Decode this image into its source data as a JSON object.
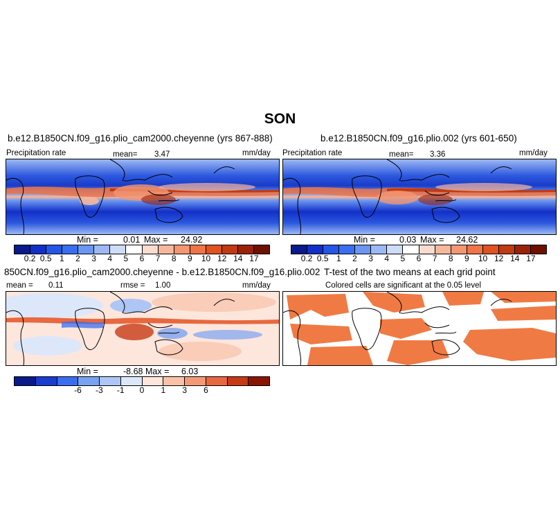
{
  "season": "SON",
  "panels": {
    "top_left": {
      "title": "b.e12.B1850CN.f09_g16.plio_cam2000.cheyenne (yrs 867-888)",
      "left_label": "Precipitation rate",
      "mean_label": "mean=",
      "mean_value": "3.47",
      "units": "mm/day",
      "min_label": "Min =",
      "min_value": "0.01",
      "max_label": "Max =",
      "max_value": "24.92"
    },
    "top_right": {
      "title": "b.e12.B1850CN.f09_g16.plio.002 (yrs 601-650)",
      "left_label": "Precipitation rate",
      "mean_label": "mean=",
      "mean_value": "3.36",
      "units": "mm/day",
      "min_label": "Min =",
      "min_value": "0.03",
      "max_label": "Max =",
      "max_value": "24.62"
    },
    "bottom_left": {
      "title": "850CN.f09_g16.plio_cam2000.cheyenne - b.e12.B1850CN.f09_g16.plio.002",
      "mean_label": "mean =",
      "mean_value": "0.11",
      "rmse_label": "rmse =",
      "rmse_value": "1.00",
      "units": "mm/day",
      "min_label": "Min =",
      "min_value": "-8.68",
      "max_label": "Max =",
      "max_value": "6.03"
    },
    "bottom_right": {
      "title": "T-test of the two means at each grid point",
      "subtitle": "Colored cells are significant at the 0.05 level"
    }
  },
  "colorbars": {
    "precip": {
      "labels": [
        "0.2",
        "0.5",
        "1",
        "2",
        "3",
        "4",
        "5",
        "6",
        "7",
        "8",
        "9",
        "10",
        "12",
        "14",
        "17"
      ],
      "colors": [
        "#0a1a8c",
        "#1230c8",
        "#2456e6",
        "#3a6ef0",
        "#6b96f2",
        "#9db9f4",
        "#cfdcf7",
        "#ffffff",
        "#f9dccf",
        "#f7b79c",
        "#f39672",
        "#ef7447",
        "#e0521f",
        "#c03a12",
        "#9a2208",
        "#6e1000"
      ]
    },
    "diff": {
      "labels": [
        "-6",
        "-3",
        "-1",
        "0",
        "1",
        "3",
        "6"
      ],
      "colors": [
        "#0a1a8c",
        "#1a3cd0",
        "#3a6ef0",
        "#7aa2f2",
        "#aec6f5",
        "#dde7fa",
        "#fde6dc",
        "#f8c2a9",
        "#f29a78",
        "#e8683f",
        "#c63b14",
        "#8a1500"
      ]
    }
  },
  "colors": {
    "ttest_fill": "#f07a44",
    "land_outline": "#000000"
  }
}
